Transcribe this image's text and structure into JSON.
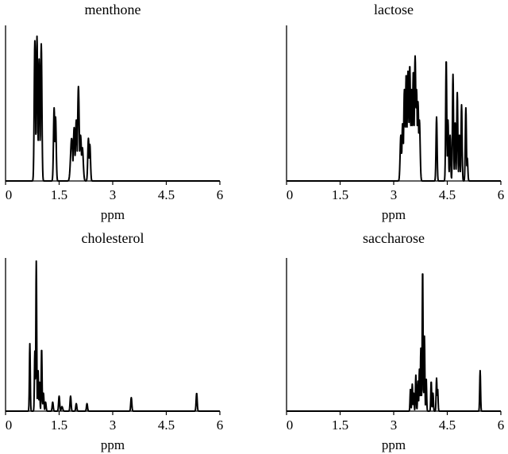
{
  "chart_data": [
    {
      "type": "line",
      "title": "menthone",
      "xlabel": "ppm",
      "xlim": [
        0,
        6
      ],
      "xticks": [
        "0",
        "1.5",
        "3",
        "4.5",
        "6"
      ],
      "ylim": [
        0,
        1
      ],
      "peaks": [
        {
          "x": 0.82,
          "y": 0.92,
          "w": 0.018
        },
        {
          "x": 0.88,
          "y": 0.95,
          "w": 0.018
        },
        {
          "x": 0.94,
          "y": 0.8,
          "w": 0.018
        },
        {
          "x": 1.0,
          "y": 0.9,
          "w": 0.018
        },
        {
          "x": 1.36,
          "y": 0.48,
          "w": 0.018
        },
        {
          "x": 1.4,
          "y": 0.42,
          "w": 0.018
        },
        {
          "x": 1.85,
          "y": 0.28,
          "w": 0.03
        },
        {
          "x": 1.92,
          "y": 0.35,
          "w": 0.022
        },
        {
          "x": 1.98,
          "y": 0.4,
          "w": 0.022
        },
        {
          "x": 2.04,
          "y": 0.62,
          "w": 0.022
        },
        {
          "x": 2.1,
          "y": 0.3,
          "w": 0.025
        },
        {
          "x": 2.15,
          "y": 0.22,
          "w": 0.025
        },
        {
          "x": 2.32,
          "y": 0.28,
          "w": 0.018
        },
        {
          "x": 2.36,
          "y": 0.24,
          "w": 0.018
        }
      ]
    },
    {
      "type": "line",
      "title": "lactose",
      "xlabel": "ppm",
      "xlim": [
        0,
        6
      ],
      "xticks": [
        "0",
        "1.5",
        "3",
        "4.5",
        "6"
      ],
      "ylim": [
        0,
        1
      ],
      "peaks": [
        {
          "x": 3.2,
          "y": 0.3,
          "w": 0.02
        },
        {
          "x": 3.25,
          "y": 0.38,
          "w": 0.02
        },
        {
          "x": 3.3,
          "y": 0.6,
          "w": 0.02
        },
        {
          "x": 3.35,
          "y": 0.7,
          "w": 0.02
        },
        {
          "x": 3.4,
          "y": 0.72,
          "w": 0.02
        },
        {
          "x": 3.45,
          "y": 0.76,
          "w": 0.02
        },
        {
          "x": 3.5,
          "y": 0.6,
          "w": 0.02
        },
        {
          "x": 3.55,
          "y": 0.72,
          "w": 0.02
        },
        {
          "x": 3.6,
          "y": 0.82,
          "w": 0.02
        },
        {
          "x": 3.64,
          "y": 0.6,
          "w": 0.02
        },
        {
          "x": 3.68,
          "y": 0.52,
          "w": 0.02
        },
        {
          "x": 3.72,
          "y": 0.4,
          "w": 0.02
        },
        {
          "x": 4.2,
          "y": 0.42,
          "w": 0.015
        },
        {
          "x": 4.47,
          "y": 0.8,
          "w": 0.015
        },
        {
          "x": 4.52,
          "y": 0.4,
          "w": 0.015
        },
        {
          "x": 4.58,
          "y": 0.3,
          "w": 0.015
        },
        {
          "x": 4.66,
          "y": 0.7,
          "w": 0.015
        },
        {
          "x": 4.72,
          "y": 0.38,
          "w": 0.015
        },
        {
          "x": 4.78,
          "y": 0.58,
          "w": 0.015
        },
        {
          "x": 4.84,
          "y": 0.3,
          "w": 0.015
        },
        {
          "x": 4.9,
          "y": 0.5,
          "w": 0.015
        },
        {
          "x": 5.02,
          "y": 0.48,
          "w": 0.015
        },
        {
          "x": 5.06,
          "y": 0.15,
          "w": 0.015
        }
      ]
    },
    {
      "type": "line",
      "title": "cholesterol",
      "xlabel": "ppm",
      "xlim": [
        0,
        6
      ],
      "xticks": [
        "0",
        "1.5",
        "3",
        "4.5",
        "6"
      ],
      "ylim": [
        0,
        1
      ],
      "peaks": [
        {
          "x": 0.68,
          "y": 0.45,
          "w": 0.012
        },
        {
          "x": 0.82,
          "y": 0.4,
          "w": 0.012
        },
        {
          "x": 0.86,
          "y": 1.0,
          "w": 0.012
        },
        {
          "x": 0.91,
          "y": 0.28,
          "w": 0.012
        },
        {
          "x": 0.95,
          "y": 0.2,
          "w": 0.012
        },
        {
          "x": 1.01,
          "y": 0.42,
          "w": 0.012
        },
        {
          "x": 1.06,
          "y": 0.12,
          "w": 0.015
        },
        {
          "x": 1.12,
          "y": 0.06,
          "w": 0.015
        },
        {
          "x": 1.32,
          "y": 0.06,
          "w": 0.015
        },
        {
          "x": 1.5,
          "y": 0.1,
          "w": 0.015
        },
        {
          "x": 1.58,
          "y": 0.03,
          "w": 0.02
        },
        {
          "x": 1.82,
          "y": 0.1,
          "w": 0.015
        },
        {
          "x": 1.98,
          "y": 0.05,
          "w": 0.015
        },
        {
          "x": 2.28,
          "y": 0.05,
          "w": 0.015
        },
        {
          "x": 3.52,
          "y": 0.09,
          "w": 0.015
        },
        {
          "x": 5.35,
          "y": 0.12,
          "w": 0.015
        }
      ]
    },
    {
      "type": "line",
      "title": "saccharose",
      "xlabel": "ppm",
      "xlim": [
        0,
        6
      ],
      "xticks": [
        "0",
        "1.5",
        "3",
        "4.5",
        "6"
      ],
      "ylim": [
        0,
        1
      ],
      "peaks": [
        {
          "x": 3.47,
          "y": 0.15,
          "w": 0.012
        },
        {
          "x": 3.52,
          "y": 0.18,
          "w": 0.012
        },
        {
          "x": 3.56,
          "y": 0.12,
          "w": 0.012
        },
        {
          "x": 3.62,
          "y": 0.24,
          "w": 0.012
        },
        {
          "x": 3.68,
          "y": 0.2,
          "w": 0.012
        },
        {
          "x": 3.72,
          "y": 0.28,
          "w": 0.012
        },
        {
          "x": 3.76,
          "y": 0.42,
          "w": 0.012
        },
        {
          "x": 3.81,
          "y": 0.95,
          "w": 0.012
        },
        {
          "x": 3.86,
          "y": 0.5,
          "w": 0.012
        },
        {
          "x": 3.91,
          "y": 0.22,
          "w": 0.012
        },
        {
          "x": 4.05,
          "y": 0.2,
          "w": 0.012
        },
        {
          "x": 4.1,
          "y": 0.12,
          "w": 0.012
        },
        {
          "x": 4.2,
          "y": 0.22,
          "w": 0.012
        },
        {
          "x": 4.23,
          "y": 0.15,
          "w": 0.012
        },
        {
          "x": 5.42,
          "y": 0.27,
          "w": 0.012
        }
      ]
    }
  ]
}
